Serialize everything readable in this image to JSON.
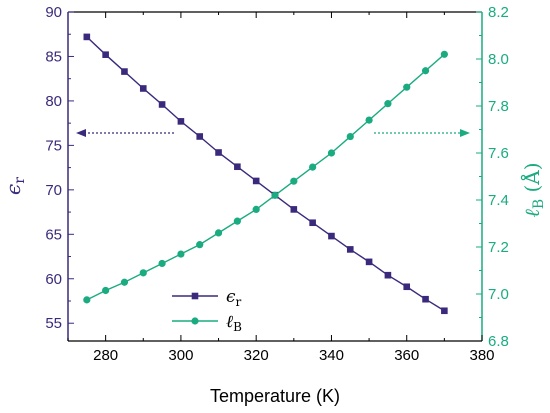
{
  "chart_data": {
    "type": "line",
    "xlabel": "Temperature (K)",
    "x": [
      275,
      280,
      285,
      290,
      295,
      300,
      305,
      310,
      315,
      320,
      325,
      330,
      335,
      340,
      345,
      350,
      355,
      360,
      365,
      370
    ],
    "xlim": [
      270,
      380
    ],
    "xticks": [
      280,
      300,
      320,
      340,
      360,
      380
    ],
    "y_left": {
      "label_symbol": "ϵ",
      "label_sub": "r",
      "lim": [
        53,
        90
      ],
      "ticks": [
        55,
        60,
        65,
        70,
        75,
        80,
        85,
        90
      ]
    },
    "y_right": {
      "label_symbol": "ℓ",
      "label_sub": "B",
      "label_unit": " (Å)",
      "lim": [
        6.8,
        8.2
      ],
      "ticks": [
        "6.8",
        "7.0",
        "7.2",
        "7.4",
        "7.6",
        "7.8",
        "8.0",
        "8.2"
      ]
    },
    "series": [
      {
        "name_symbol": "ϵ",
        "name_sub": "r",
        "axis": "left",
        "marker": "square",
        "color": "#3b2a7c",
        "values": [
          87.2,
          85.2,
          83.3,
          81.4,
          79.6,
          77.7,
          76.0,
          74.2,
          72.6,
          71.0,
          69.4,
          67.8,
          66.3,
          64.8,
          63.3,
          61.9,
          60.4,
          59.1,
          57.7,
          56.4
        ]
      },
      {
        "name_symbol": "ℓ",
        "name_sub": "B",
        "axis": "right",
        "marker": "circle",
        "color": "#1aab80",
        "values": [
          6.975,
          7.015,
          7.05,
          7.09,
          7.13,
          7.17,
          7.21,
          7.26,
          7.31,
          7.36,
          7.42,
          7.48,
          7.54,
          7.6,
          7.67,
          7.74,
          7.81,
          7.88,
          7.95,
          8.02
        ]
      }
    ],
    "annotations": [
      {
        "type": "dotted-arrow",
        "direction": "left",
        "color": "#3b2a7c",
        "points_to": "left-axis"
      },
      {
        "type": "dotted-arrow",
        "direction": "right",
        "color": "#1aab80",
        "points_to": "right-axis"
      }
    ],
    "legend": "bottom-left",
    "grid": false
  }
}
